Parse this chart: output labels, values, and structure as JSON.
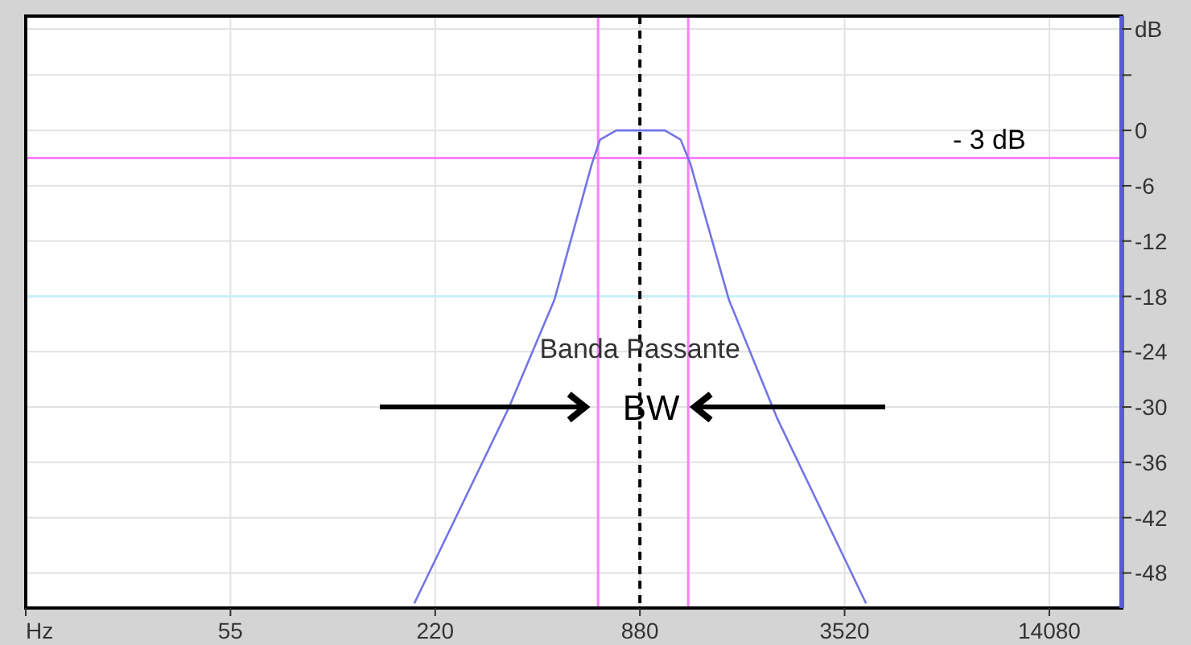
{
  "chart_data": {
    "type": "line",
    "log": "x",
    "xlim": [
      13.75,
      23000
    ],
    "ylim": [
      -51.8,
      12.4
    ],
    "xticks": [
      {
        "value": 13.75,
        "label": "Hz"
      },
      55,
      220,
      880,
      3520,
      14080
    ],
    "yticks": [
      {
        "value": 11,
        "label": "dB"
      },
      {
        "value": 6,
        "label": null
      },
      0,
      -6,
      -12,
      -18,
      -24,
      -30,
      -36,
      -42,
      -48
    ],
    "grid": true,
    "line_style": "solid",
    "series": [
      {
        "color": "#7474e6",
        "x": [
          191,
          362,
          493,
          636,
          672,
          750,
          1042,
          1160,
          1238,
          1609,
          2228,
          4070
        ],
        "values": [
          -51.3,
          -30.1,
          -18.4,
          -3.6,
          -1,
          0,
          0,
          -1,
          -3.6,
          -18.4,
          -31.2,
          -51.3
        ]
      }
    ],
    "ref_lines": [
      {
        "axis": "y",
        "value": -3,
        "label": "- 3 dB",
        "color": "#ff80ff",
        "line_style": "solid"
      },
      {
        "axis": "y",
        "value": -18,
        "color": "#c8f0f8",
        "line_style": "solid"
      },
      {
        "axis": "x",
        "value": 663,
        "color": "#ff80ff",
        "line_style": "solid"
      },
      {
        "axis": "x",
        "value": 1221,
        "color": "#ff80ff",
        "line_style": "solid"
      },
      {
        "axis": "x",
        "value": 880,
        "color": "#000000",
        "line_style": "dashed"
      }
    ],
    "annotations": [
      {
        "text": "Banda Passante",
        "x": 880,
        "y": -24
      },
      {
        "text": "BW",
        "x": 880,
        "y": -30
      }
    ]
  }
}
